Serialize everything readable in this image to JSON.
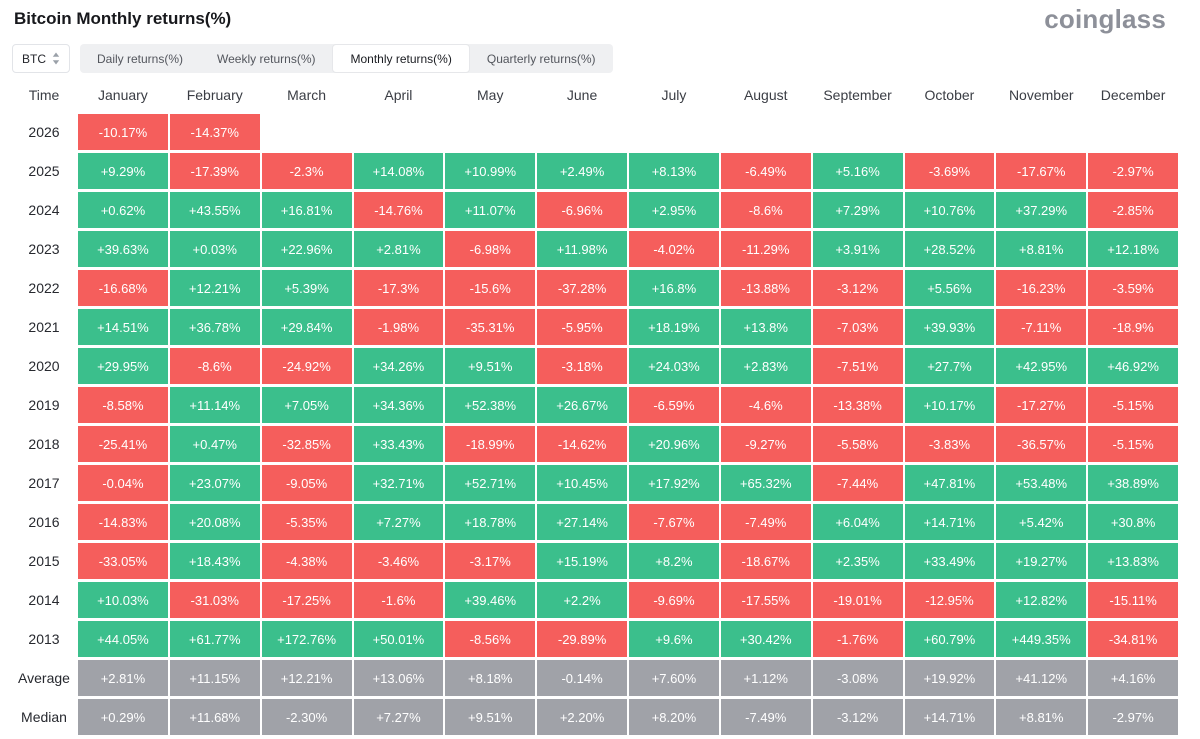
{
  "header": {
    "title": "Bitcoin Monthly returns(%)",
    "logo": "coinglass"
  },
  "controls": {
    "symbol": "BTC",
    "tabs": [
      {
        "label": "Daily returns(%)",
        "active": false
      },
      {
        "label": "Weekly returns(%)",
        "active": false
      },
      {
        "label": "Monthly returns(%)",
        "active": true
      },
      {
        "label": "Quarterly returns(%)",
        "active": false
      }
    ]
  },
  "colors": {
    "positive": "#3bbf8c",
    "negative": "#f55e5c",
    "summary": "#a0a2a8"
  },
  "chart_data": {
    "type": "heatmap",
    "title": "Bitcoin Monthly returns(%)",
    "columns": [
      "Time",
      "January",
      "February",
      "March",
      "April",
      "May",
      "June",
      "July",
      "August",
      "September",
      "October",
      "November",
      "December"
    ],
    "rows": [
      {
        "label": "2026",
        "summary": false,
        "values": [
          "-10.17%",
          "-14.37%",
          "",
          "",
          "",
          "",
          "",
          "",
          "",
          "",
          "",
          ""
        ]
      },
      {
        "label": "2025",
        "summary": false,
        "values": [
          "+9.29%",
          "-17.39%",
          "-2.3%",
          "+14.08%",
          "+10.99%",
          "+2.49%",
          "+8.13%",
          "-6.49%",
          "+5.16%",
          "-3.69%",
          "-17.67%",
          "-2.97%"
        ]
      },
      {
        "label": "2024",
        "summary": false,
        "values": [
          "+0.62%",
          "+43.55%",
          "+16.81%",
          "-14.76%",
          "+11.07%",
          "-6.96%",
          "+2.95%",
          "-8.6%",
          "+7.29%",
          "+10.76%",
          "+37.29%",
          "-2.85%"
        ]
      },
      {
        "label": "2023",
        "summary": false,
        "values": [
          "+39.63%",
          "+0.03%",
          "+22.96%",
          "+2.81%",
          "-6.98%",
          "+11.98%",
          "-4.02%",
          "-11.29%",
          "+3.91%",
          "+28.52%",
          "+8.81%",
          "+12.18%"
        ]
      },
      {
        "label": "2022",
        "summary": false,
        "values": [
          "-16.68%",
          "+12.21%",
          "+5.39%",
          "-17.3%",
          "-15.6%",
          "-37.28%",
          "+16.8%",
          "-13.88%",
          "-3.12%",
          "+5.56%",
          "-16.23%",
          "-3.59%"
        ]
      },
      {
        "label": "2021",
        "summary": false,
        "values": [
          "+14.51%",
          "+36.78%",
          "+29.84%",
          "-1.98%",
          "-35.31%",
          "-5.95%",
          "+18.19%",
          "+13.8%",
          "-7.03%",
          "+39.93%",
          "-7.11%",
          "-18.9%"
        ]
      },
      {
        "label": "2020",
        "summary": false,
        "values": [
          "+29.95%",
          "-8.6%",
          "-24.92%",
          "+34.26%",
          "+9.51%",
          "-3.18%",
          "+24.03%",
          "+2.83%",
          "-7.51%",
          "+27.7%",
          "+42.95%",
          "+46.92%"
        ]
      },
      {
        "label": "2019",
        "summary": false,
        "values": [
          "-8.58%",
          "+11.14%",
          "+7.05%",
          "+34.36%",
          "+52.38%",
          "+26.67%",
          "-6.59%",
          "-4.6%",
          "-13.38%",
          "+10.17%",
          "-17.27%",
          "-5.15%"
        ]
      },
      {
        "label": "2018",
        "summary": false,
        "values": [
          "-25.41%",
          "+0.47%",
          "-32.85%",
          "+33.43%",
          "-18.99%",
          "-14.62%",
          "+20.96%",
          "-9.27%",
          "-5.58%",
          "-3.83%",
          "-36.57%",
          "-5.15%"
        ]
      },
      {
        "label": "2017",
        "summary": false,
        "values": [
          "-0.04%",
          "+23.07%",
          "-9.05%",
          "+32.71%",
          "+52.71%",
          "+10.45%",
          "+17.92%",
          "+65.32%",
          "-7.44%",
          "+47.81%",
          "+53.48%",
          "+38.89%"
        ]
      },
      {
        "label": "2016",
        "summary": false,
        "values": [
          "-14.83%",
          "+20.08%",
          "-5.35%",
          "+7.27%",
          "+18.78%",
          "+27.14%",
          "-7.67%",
          "-7.49%",
          "+6.04%",
          "+14.71%",
          "+5.42%",
          "+30.8%"
        ]
      },
      {
        "label": "2015",
        "summary": false,
        "values": [
          "-33.05%",
          "+18.43%",
          "-4.38%",
          "-3.46%",
          "-3.17%",
          "+15.19%",
          "+8.2%",
          "-18.67%",
          "+2.35%",
          "+33.49%",
          "+19.27%",
          "+13.83%"
        ]
      },
      {
        "label": "2014",
        "summary": false,
        "values": [
          "+10.03%",
          "-31.03%",
          "-17.25%",
          "-1.6%",
          "+39.46%",
          "+2.2%",
          "-9.69%",
          "-17.55%",
          "-19.01%",
          "-12.95%",
          "+12.82%",
          "-15.11%"
        ]
      },
      {
        "label": "2013",
        "summary": false,
        "values": [
          "+44.05%",
          "+61.77%",
          "+172.76%",
          "+50.01%",
          "-8.56%",
          "-29.89%",
          "+9.6%",
          "+30.42%",
          "-1.76%",
          "+60.79%",
          "+449.35%",
          "-34.81%"
        ]
      },
      {
        "label": "Average",
        "summary": true,
        "values": [
          "+2.81%",
          "+11.15%",
          "+12.21%",
          "+13.06%",
          "+8.18%",
          "-0.14%",
          "+7.60%",
          "+1.12%",
          "-3.08%",
          "+19.92%",
          "+41.12%",
          "+4.16%"
        ]
      },
      {
        "label": "Median",
        "summary": true,
        "values": [
          "+0.29%",
          "+11.68%",
          "-2.30%",
          "+7.27%",
          "+9.51%",
          "+2.20%",
          "+8.20%",
          "-7.49%",
          "-3.12%",
          "+14.71%",
          "+8.81%",
          "-2.97%"
        ]
      }
    ]
  }
}
